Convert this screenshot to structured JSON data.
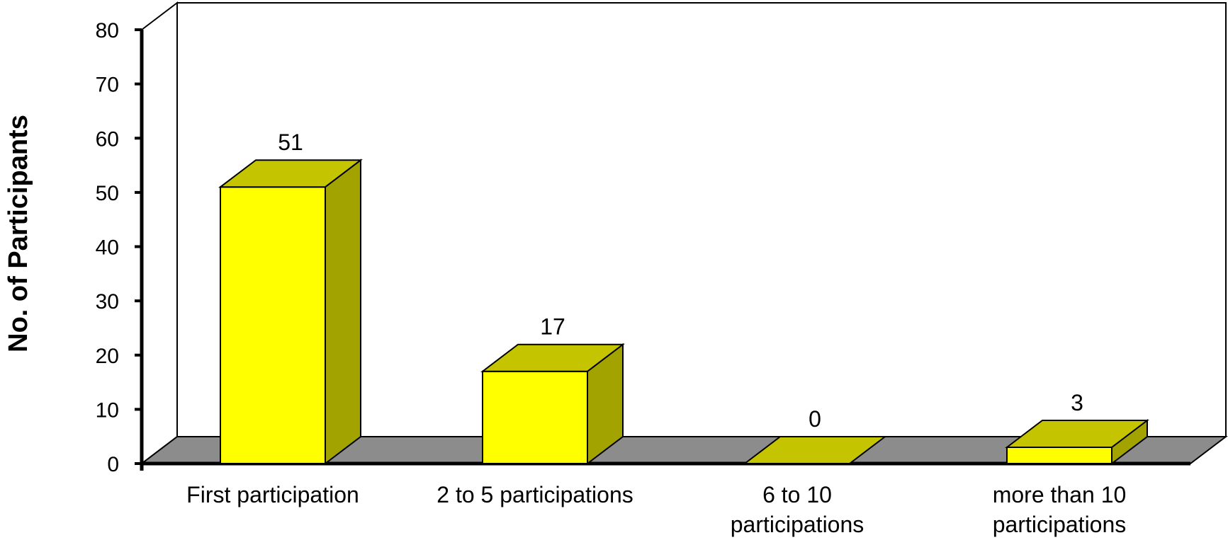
{
  "chart_data": {
    "type": "bar",
    "title": "",
    "xlabel": "",
    "ylabel": "No. of Participants",
    "ylim": [
      0,
      80
    ],
    "yticks": [
      0,
      10,
      20,
      30,
      40,
      50,
      60,
      70,
      80
    ],
    "categories": [
      [
        "First participation"
      ],
      [
        "2 to 5 participations"
      ],
      [
        "6 to 10",
        "participations"
      ],
      [
        "more than 10",
        "participations"
      ]
    ],
    "values": [
      51,
      17,
      0,
      3
    ],
    "style": "3d",
    "grid": false,
    "legend": "none"
  },
  "colors": {
    "bar_front": "#FFFF00",
    "bar_top": "#C4C400",
    "bar_side": "#A3A300",
    "floor": "#8C8C8C",
    "outline": "#000000"
  }
}
